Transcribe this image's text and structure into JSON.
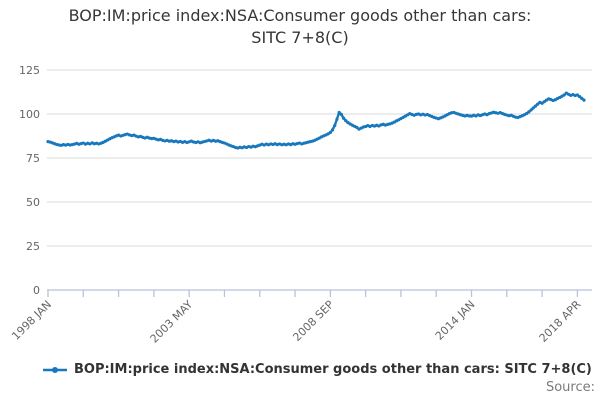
{
  "title": {
    "line1": "BOP:IM:price index:NSA:Consumer goods other than cars:",
    "line2": "SITC 7+8(C)"
  },
  "legend": {
    "label": "BOP:IM:price index:NSA:Consumer goods other than cars: SITC 7+8(C)"
  },
  "source": {
    "label": "Source:"
  },
  "colors": {
    "line": "#1878bd",
    "grid": "#d9d9d9",
    "axis": "#b6c3da",
    "tick_label": "#666666",
    "title_text": "#363636",
    "legend_text": "#333333",
    "source_text": "#7a7a7a",
    "background": "#ffffff"
  },
  "chart_data": {
    "type": "line",
    "title": "BOP:IM:price index:NSA:Consumer goods other than cars: SITC 7+8(C)",
    "x_start": "1998-01",
    "x_end": "2018-04",
    "x_frequency": "monthly",
    "point_count": 244,
    "x_tick_interval_months": 16,
    "x_tick_labels": [
      {
        "tick_index": 0,
        "label": "1998 JAN"
      },
      {
        "tick_index": 4,
        "label": "2003 MAY"
      },
      {
        "tick_index": 8,
        "label": "2008 SEP"
      },
      {
        "tick_index": 12,
        "label": "2014 JAN"
      },
      {
        "tick_index": 15,
        "label": "2018 APR"
      }
    ],
    "y_ticks": [
      0,
      25,
      50,
      75,
      100,
      125
    ],
    "ylim": [
      0,
      125
    ],
    "grid": "horizontal",
    "legend_position": "bottom",
    "values": [
      84.3,
      84.0,
      83.6,
      83.1,
      82.7,
      82.4,
      82.2,
      82.6,
      82.3,
      82.7,
      82.4,
      82.6,
      82.9,
      83.3,
      82.8,
      83.2,
      83.5,
      82.9,
      83.4,
      83.0,
      83.6,
      83.1,
      83.4,
      83.0,
      83.4,
      83.9,
      84.5,
      85.2,
      85.9,
      86.5,
      87.0,
      87.6,
      88.0,
      87.5,
      87.9,
      88.3,
      88.6,
      88.1,
      87.7,
      88.0,
      87.4,
      87.0,
      87.3,
      86.7,
      86.4,
      86.8,
      86.3,
      86.0,
      86.2,
      85.7,
      85.3,
      85.6,
      85.0,
      84.7,
      85.0,
      84.5,
      84.8,
      84.3,
      84.6,
      84.1,
      84.4,
      83.9,
      84.3,
      83.8,
      84.2,
      84.6,
      84.1,
      83.8,
      84.2,
      83.7,
      84.0,
      84.4,
      84.7,
      85.1,
      84.6,
      85.0,
      84.5,
      84.8,
      84.3,
      83.9,
      83.5,
      83.0,
      82.4,
      81.9,
      81.5,
      81.0,
      80.7,
      81.1,
      80.8,
      81.3,
      81.0,
      81.5,
      81.2,
      81.7,
      81.4,
      81.9,
      82.3,
      82.8,
      82.4,
      82.9,
      82.5,
      83.0,
      82.7,
      83.1,
      82.6,
      83.0,
      82.5,
      82.8,
      82.5,
      83.0,
      82.6,
      83.1,
      82.8,
      83.2,
      83.5,
      83.0,
      83.4,
      83.7,
      84.0,
      84.3,
      84.6,
      85.1,
      85.7,
      86.3,
      87.0,
      87.6,
      88.1,
      88.7,
      89.5,
      91.0,
      93.5,
      97.0,
      100.9,
      99.8,
      97.6,
      96.2,
      95.1,
      94.3,
      93.6,
      93.0,
      92.4,
      91.4,
      92.0,
      92.6,
      92.9,
      93.4,
      92.9,
      93.5,
      93.1,
      93.6,
      93.2,
      93.8,
      94.2,
      93.7,
      94.1,
      94.4,
      94.8,
      95.4,
      96.1,
      96.7,
      97.4,
      98.1,
      98.8,
      99.5,
      100.2,
      99.7,
      99.3,
      99.8,
      100.0,
      99.5,
      99.9,
      99.4,
      99.7,
      99.1,
      98.6,
      98.1,
      97.7,
      97.3,
      97.8,
      98.3,
      98.9,
      99.6,
      100.2,
      100.7,
      100.9,
      100.4,
      100.0,
      99.6,
      99.2,
      98.9,
      99.2,
      98.9,
      98.8,
      99.3,
      98.9,
      99.5,
      99.1,
      99.6,
      100.0,
      99.6,
      100.2,
      100.6,
      101.0,
      100.7,
      100.4,
      100.8,
      100.3,
      99.8,
      99.4,
      99.0,
      99.3,
      98.7,
      98.2,
      98.0,
      98.5,
      99.0,
      99.6,
      100.3,
      101.2,
      102.3,
      103.4,
      104.5,
      105.6,
      106.6,
      106.1,
      107.0,
      107.9,
      108.6,
      108.2,
      107.7,
      108.1,
      108.8,
      109.4,
      110.1,
      110.8,
      111.9,
      111.2,
      110.6,
      111.0,
      110.5,
      110.8,
      109.9,
      108.9,
      107.9
    ]
  }
}
